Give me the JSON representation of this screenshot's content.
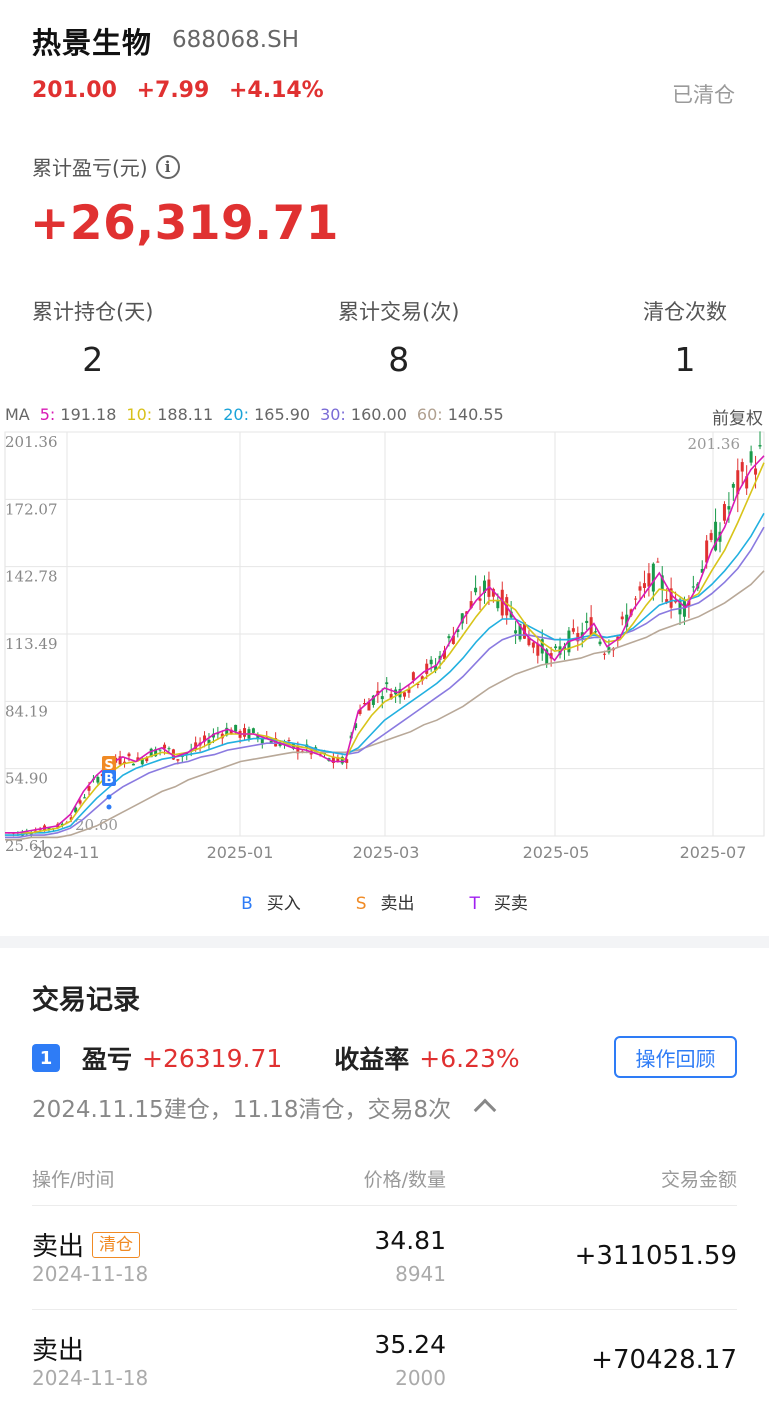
{
  "stock": {
    "name": "热景生物",
    "code": "688068.SH"
  },
  "quote": {
    "price": "201.00",
    "change": "+7.99",
    "change_pct": "+4.14%",
    "status": "已清仓"
  },
  "pl": {
    "label": "累计盈亏(元)",
    "value": "+26,319.71",
    "info_icon": "info-icon"
  },
  "stats": [
    {
      "label": "累计持仓(天)",
      "value": "2"
    },
    {
      "label": "累计交易(次)",
      "value": "8"
    },
    {
      "label": "清仓次数",
      "value": "1"
    }
  ],
  "ma": {
    "prefix": "MA",
    "items": [
      {
        "key": "5:",
        "value": "191.18",
        "color": "#d81ab5"
      },
      {
        "key": "10:",
        "value": "188.11",
        "color": "#d8c01a"
      },
      {
        "key": "20:",
        "value": "165.90",
        "color": "#1aa3d8"
      },
      {
        "key": "30:",
        "value": "160.00",
        "color": "#7a6bd6"
      },
      {
        "key": "60:",
        "value": "140.55",
        "color": "#b0a090"
      }
    ],
    "adjust": "前复权"
  },
  "chart_data": {
    "type": "candlestick",
    "y_ticks": [
      "201.36",
      "172.07",
      "142.78",
      "113.49",
      "84.19",
      "54.90",
      "25.61"
    ],
    "ylim": [
      25.61,
      201.36
    ],
    "x_ticks": [
      "2024-11",
      "2025-01",
      "2025-03",
      "2025-05",
      "2025-07"
    ],
    "high_label": "201.36",
    "low_label": "20.60",
    "markers": [
      "B",
      "S"
    ],
    "ma5": [
      27,
      27,
      28,
      29,
      30,
      35,
      45,
      52,
      57,
      60,
      58,
      62,
      64,
      60,
      62,
      66,
      70,
      72,
      70,
      70,
      68,
      66,
      64,
      63,
      61,
      58,
      58,
      80,
      85,
      90,
      88,
      92,
      97,
      100,
      110,
      120,
      128,
      134,
      128,
      120,
      112,
      108,
      102,
      110,
      112,
      118,
      108,
      112,
      124,
      132,
      140,
      130,
      125,
      135,
      150,
      160,
      175,
      185,
      191
    ],
    "ma10": [
      27,
      27,
      27,
      28,
      29,
      32,
      40,
      47,
      53,
      57,
      58,
      60,
      62,
      61,
      62,
      64,
      67,
      70,
      70,
      70,
      69,
      67,
      65,
      64,
      62,
      60,
      59,
      70,
      78,
      84,
      87,
      90,
      94,
      98,
      105,
      113,
      121,
      128,
      128,
      124,
      116,
      110,
      106,
      107,
      109,
      114,
      110,
      111,
      118,
      126,
      133,
      132,
      128,
      131,
      141,
      150,
      162,
      175,
      188
    ],
    "ma20": [
      26,
      26,
      27,
      27,
      28,
      30,
      36,
      42,
      47,
      52,
      55,
      57,
      59,
      60,
      61,
      62,
      64,
      66,
      67,
      68,
      68,
      67,
      66,
      65,
      63,
      62,
      61,
      64,
      70,
      76,
      80,
      84,
      88,
      92,
      97,
      103,
      110,
      116,
      120,
      120,
      117,
      114,
      111,
      111,
      112,
      113,
      112,
      113,
      116,
      121,
      126,
      128,
      128,
      130,
      135,
      141,
      148,
      156,
      166
    ],
    "ma30": [
      25,
      25,
      26,
      26,
      27,
      29,
      33,
      38,
      43,
      47,
      50,
      53,
      55,
      57,
      58,
      60,
      61,
      63,
      64,
      65,
      66,
      66,
      65,
      64,
      63,
      62,
      61,
      62,
      66,
      70,
      74,
      78,
      82,
      86,
      90,
      95,
      101,
      107,
      111,
      113,
      113,
      112,
      111,
      111,
      111,
      112,
      112,
      113,
      115,
      118,
      122,
      124,
      125,
      127,
      131,
      136,
      142,
      150,
      160
    ],
    "ma60": [
      24,
      24,
      25,
      25,
      25,
      26,
      28,
      30,
      33,
      36,
      39,
      42,
      45,
      47,
      50,
      52,
      54,
      56,
      58,
      59,
      60,
      61,
      62,
      62,
      62,
      62,
      62,
      63,
      65,
      67,
      69,
      71,
      74,
      76,
      79,
      82,
      86,
      90,
      93,
      96,
      98,
      100,
      101,
      102,
      103,
      105,
      106,
      108,
      110,
      112,
      115,
      117,
      119,
      121,
      124,
      127,
      131,
      135,
      141
    ]
  },
  "legend": [
    {
      "key": "B",
      "label": "买入",
      "color": "#2e7cf6"
    },
    {
      "key": "S",
      "label": "卖出",
      "color": "#f08a24"
    },
    {
      "key": "T",
      "label": "买卖",
      "color": "#a020f0"
    }
  ],
  "records": {
    "title": "交易记录",
    "index": "1",
    "pl_label": "盈亏",
    "pl_value": "+26319.71",
    "rate_label": "收益率",
    "rate_value": "+6.23%",
    "review_button": "操作回顾",
    "summary": "2024.11.15建仓，11.18清仓，交易8次",
    "columns": [
      "操作/时间",
      "价格/数量",
      "交易金额"
    ],
    "rows": [
      {
        "op": "卖出",
        "tag": "清仓",
        "date": "2024-11-18",
        "price": "34.81",
        "qty": "8941",
        "amount": "+311051.59"
      },
      {
        "op": "卖出",
        "tag": "",
        "date": "2024-11-18",
        "price": "35.24",
        "qty": "2000",
        "amount": "+70428.17"
      }
    ]
  }
}
